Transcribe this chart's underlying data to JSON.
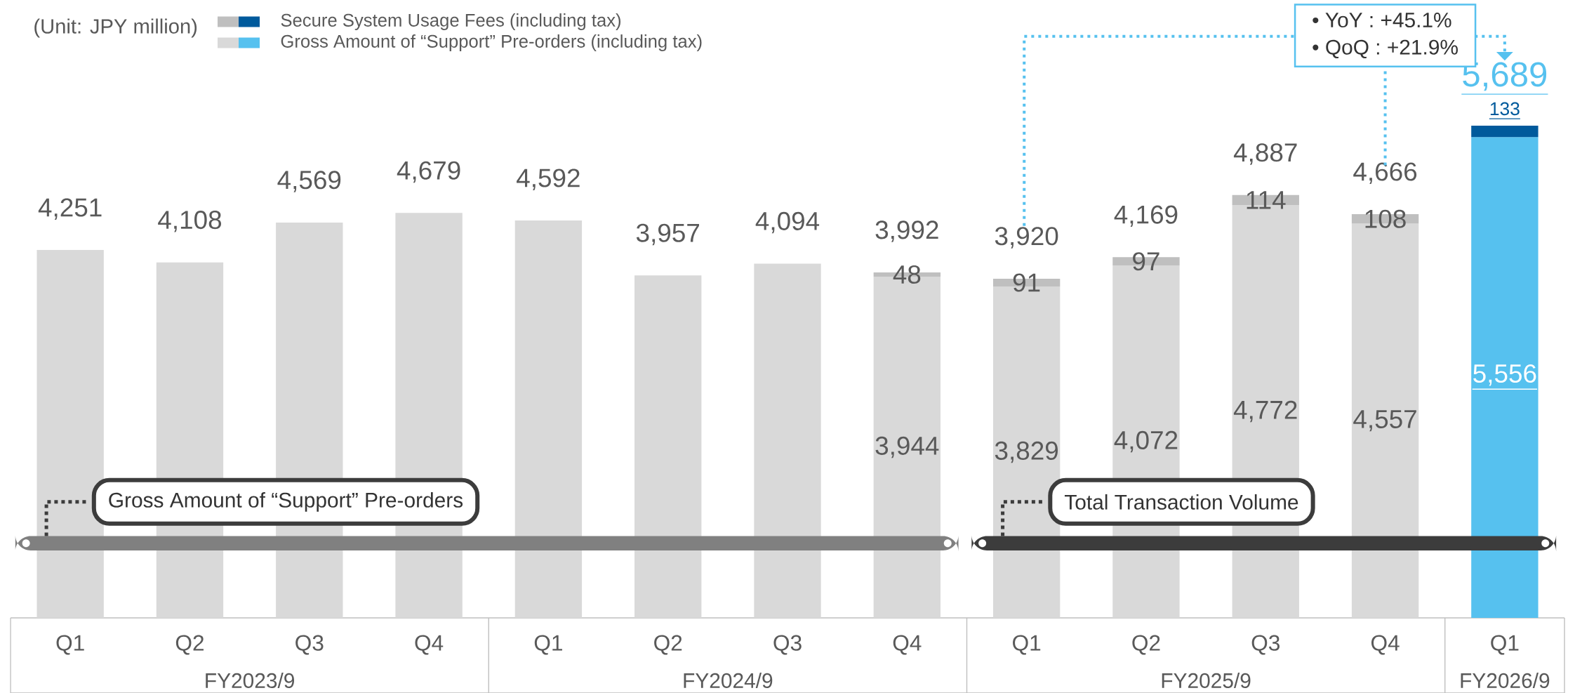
{
  "chart_data": {
    "type": "bar",
    "stacked": true,
    "legend": "top left",
    "tick_labels": "x",
    "categories": [
      "Q1",
      "Q2",
      "Q3",
      "Q4",
      "Q1",
      "Q2",
      "Q3",
      "Q4",
      "Q1",
      "Q2",
      "Q3",
      "Q4",
      "Q1"
    ],
    "series": [
      {
        "name": "Gross Amount of “Support” Pre-orders (including tax)",
        "colors": [
          "#d9d9d9",
          "#d9d9d9",
          "#d9d9d9",
          "#d9d9d9",
          "#d9d9d9",
          "#d9d9d9",
          "#d9d9d9",
          "#d9d9d9",
          "#d9d9d9",
          "#d9d9d9",
          "#d9d9d9",
          "#d9d9d9",
          "#56c1ef"
        ],
        "values": [
          4251,
          4108,
          4569,
          4679,
          4592,
          3957,
          4094,
          3944,
          3829,
          4072,
          4772,
          4557,
          5556
        ],
        "value_labels": [
          null,
          null,
          null,
          null,
          null,
          null,
          null,
          "3,944",
          "3,829",
          "4,072",
          "4,772",
          "4,557",
          "5,556"
        ]
      },
      {
        "name": "Secure System Usage Fees (including tax)",
        "colors": [
          "#bfbfbf",
          "#bfbfbf",
          "#bfbfbf",
          "#bfbfbf",
          "#bfbfbf",
          "#bfbfbf",
          "#bfbfbf",
          "#bfbfbf",
          "#bfbfbf",
          "#bfbfbf",
          "#bfbfbf",
          "#bfbfbf",
          "#005a9c"
        ],
        "values": [
          null,
          null,
          null,
          null,
          null,
          null,
          null,
          48,
          91,
          97,
          114,
          108,
          133
        ],
        "value_labels": [
          null,
          null,
          null,
          null,
          null,
          null,
          null,
          "48",
          "91",
          "97",
          "114",
          "108",
          "133"
        ]
      }
    ],
    "totals": [
      "4,251",
      "4,108",
      "4,569",
      "4,679",
      "4,592",
      "3,957",
      "4,094",
      "3,992",
      "3,920",
      "4,169",
      "4,887",
      "4,666",
      "5,689"
    ],
    "annotations": [
      "(Unit: JPY million)",
      "• YoY  : +45.1%",
      "• QoQ : +21.9%",
      "FY2023/9",
      "FY2024/9",
      "FY2025/9",
      "FY2026/9",
      "Gross Amount of “Support” Pre-orders",
      "Total Transaction Volume"
    ]
  }
}
